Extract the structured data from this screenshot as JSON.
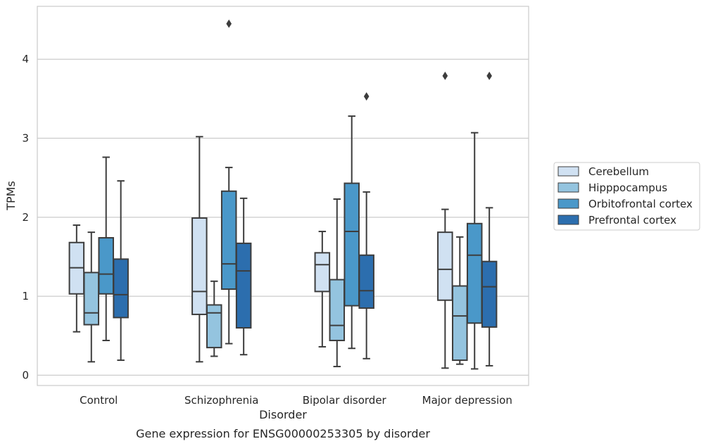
{
  "caption": "Gene expression for ENSG00000253305 by disorder",
  "chart_data": {
    "type": "boxplot",
    "title": "",
    "xlabel": "Disorder",
    "ylabel": "TPMs",
    "ylim": [
      -0.13,
      4.67
    ],
    "yticks": [
      0,
      1,
      2,
      3,
      4
    ],
    "grid": "horizontal",
    "legend_placement": "right",
    "categories": [
      "Control",
      "Schizophrenia",
      "Bipolar disorder",
      "Major depression"
    ],
    "series": [
      {
        "name": "Cerebellum",
        "color": "#d0e1f2",
        "boxes": [
          {
            "whislo": 0.55,
            "q1": 1.03,
            "med": 1.36,
            "q3": 1.68,
            "whishi": 1.9,
            "fliers": []
          },
          {
            "whislo": 0.17,
            "q1": 0.77,
            "med": 1.06,
            "q3": 1.99,
            "whishi": 3.02,
            "fliers": []
          },
          {
            "whislo": 0.36,
            "q1": 1.06,
            "med": 1.4,
            "q3": 1.55,
            "whishi": 1.82,
            "fliers": []
          },
          {
            "whislo": 0.09,
            "q1": 0.95,
            "med": 1.34,
            "q3": 1.81,
            "whishi": 2.1,
            "fliers": [
              3.79
            ]
          }
        ]
      },
      {
        "name": "Hipppocampus",
        "color": "#94c4df",
        "boxes": [
          {
            "whislo": 0.17,
            "q1": 0.64,
            "med": 0.79,
            "q3": 1.3,
            "whishi": 1.81,
            "fliers": []
          },
          {
            "whislo": 0.24,
            "q1": 0.35,
            "med": 0.79,
            "q3": 0.89,
            "whishi": 1.19,
            "fliers": []
          },
          {
            "whislo": 0.11,
            "q1": 0.44,
            "med": 0.63,
            "q3": 1.21,
            "whishi": 2.23,
            "fliers": []
          },
          {
            "whislo": 0.14,
            "q1": 0.19,
            "med": 0.75,
            "q3": 1.13,
            "whishi": 1.75,
            "fliers": []
          }
        ]
      },
      {
        "name": "Orbitofrontal cortex",
        "color": "#4a98c9",
        "boxes": [
          {
            "whislo": 0.44,
            "q1": 1.03,
            "med": 1.28,
            "q3": 1.74,
            "whishi": 2.76,
            "fliers": []
          },
          {
            "whislo": 0.4,
            "q1": 1.09,
            "med": 1.41,
            "q3": 2.33,
            "whishi": 2.63,
            "fliers": [
              4.45
            ]
          },
          {
            "whislo": 0.34,
            "q1": 0.88,
            "med": 1.82,
            "q3": 2.43,
            "whishi": 3.28,
            "fliers": []
          },
          {
            "whislo": 0.08,
            "q1": 0.66,
            "med": 1.52,
            "q3": 1.92,
            "whishi": 3.07,
            "fliers": []
          }
        ]
      },
      {
        "name": "Prefrontal cortex",
        "color": "#2c6eae",
        "boxes": [
          {
            "whislo": 0.19,
            "q1": 0.73,
            "med": 1.02,
            "q3": 1.47,
            "whishi": 2.46,
            "fliers": []
          },
          {
            "whislo": 0.26,
            "q1": 0.6,
            "med": 1.32,
            "q3": 1.67,
            "whishi": 2.24,
            "fliers": []
          },
          {
            "whislo": 0.21,
            "q1": 0.85,
            "med": 1.07,
            "q3": 1.52,
            "whishi": 2.32,
            "fliers": [
              3.53
            ]
          },
          {
            "whislo": 0.12,
            "q1": 0.61,
            "med": 1.12,
            "q3": 1.44,
            "whishi": 2.12,
            "fliers": [
              3.79
            ]
          }
        ]
      }
    ]
  }
}
